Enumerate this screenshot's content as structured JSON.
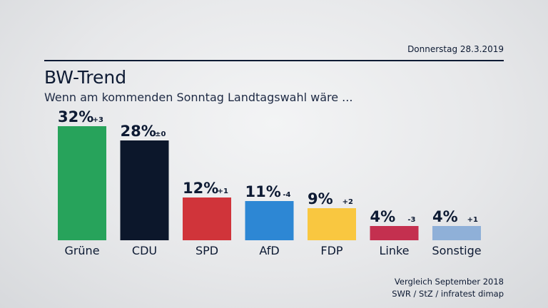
{
  "header": {
    "date": "Donnerstag 28.3.2019",
    "title": "BW-Trend",
    "subtitle": "Wenn am kommenden Sonntag Landtagswahl wäre ..."
  },
  "footer": {
    "line1": "Vergleich September 2018",
    "line2": "SWR / StZ / infratest dimap"
  },
  "chart_data": {
    "type": "bar",
    "title": "BW-Trend",
    "subtitle": "Wenn am kommenden Sonntag Landtagswahl wäre ...",
    "categories": [
      "Grüne",
      "CDU",
      "SPD",
      "AfD",
      "FDP",
      "Linke",
      "Sonstige"
    ],
    "values": [
      32,
      28,
      12,
      11,
      9,
      4,
      4
    ],
    "value_labels": [
      "32%",
      "28%",
      "12%",
      "11%",
      "9%",
      "4%",
      "4%"
    ],
    "changes": [
      "+3",
      "±0",
      "+1",
      "-4",
      "+2",
      "-3",
      "+1"
    ],
    "colors": [
      "#27a35b",
      "#0c172b",
      "#d0343a",
      "#2d87d4",
      "#f9c740",
      "#c4304f",
      "#8fb0d8"
    ],
    "grid": false,
    "legend": "none"
  }
}
